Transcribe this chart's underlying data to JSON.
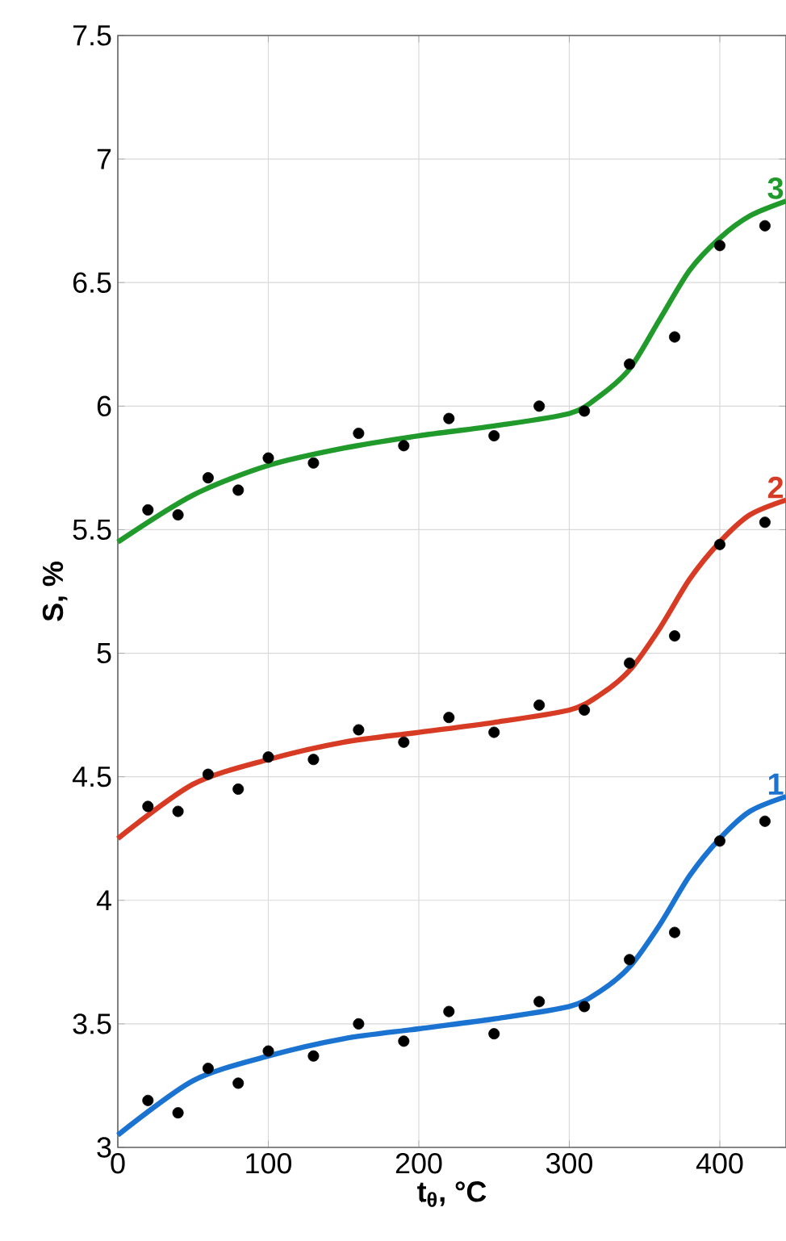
{
  "chart_data": {
    "type": "line",
    "xlabel": "t$_{θ}$, °C",
    "ylabel": "S, %",
    "xlim": [
      0,
      444
    ],
    "ylim": [
      3,
      7.5
    ],
    "xticks": [
      0,
      100,
      200,
      300,
      400
    ],
    "yticks": [
      3,
      3.5,
      4,
      4.5,
      5,
      5.5,
      6,
      6.5,
      7,
      7.5
    ],
    "grid": true,
    "series": [
      {
        "name": "1",
        "marker": "none",
        "color": "#1a73d0",
        "x": [
          0,
          50,
          100,
          150,
          200,
          250,
          300,
          320,
          340,
          360,
          380,
          400,
          420,
          444
        ],
        "values": [
          3.05,
          3.27,
          3.37,
          3.44,
          3.48,
          3.52,
          3.57,
          3.63,
          3.73,
          3.9,
          4.1,
          4.25,
          4.36,
          4.42
        ]
      },
      {
        "name": "2",
        "marker": "none",
        "color": "#d83b24",
        "x": [
          0,
          50,
          100,
          150,
          200,
          250,
          300,
          320,
          340,
          360,
          380,
          400,
          420,
          444
        ],
        "values": [
          4.25,
          4.47,
          4.57,
          4.64,
          4.68,
          4.72,
          4.77,
          4.83,
          4.93,
          5.1,
          5.3,
          5.45,
          5.56,
          5.62
        ]
      },
      {
        "name": "3",
        "marker": "none",
        "color": "#1f9a2b",
        "x": [
          0,
          50,
          100,
          150,
          200,
          250,
          300,
          320,
          340,
          360,
          380,
          400,
          420,
          444
        ],
        "values": [
          5.45,
          5.64,
          5.76,
          5.83,
          5.88,
          5.92,
          5.97,
          6.04,
          6.15,
          6.35,
          6.55,
          6.68,
          6.77,
          6.83
        ]
      },
      {
        "type": "scatter",
        "marker": "circle",
        "color": "#000000",
        "x": [
          20,
          40,
          60,
          80,
          100,
          130,
          160,
          190,
          220,
          250,
          280,
          310,
          340,
          370,
          400,
          430
        ],
        "values": [
          3.19,
          3.14,
          3.32,
          3.26,
          3.39,
          3.37,
          3.5,
          3.43,
          3.55,
          3.46,
          3.59,
          3.57,
          3.76,
          3.87,
          4.24,
          4.32
        ]
      },
      {
        "type": "scatter",
        "marker": "circle",
        "color": "#000000",
        "x": [
          20,
          40,
          60,
          80,
          100,
          130,
          160,
          190,
          220,
          250,
          280,
          310,
          340,
          370,
          400,
          430
        ],
        "values": [
          4.38,
          4.36,
          4.51,
          4.45,
          4.58,
          4.57,
          4.69,
          4.64,
          4.74,
          4.68,
          4.79,
          4.77,
          4.96,
          5.07,
          5.44,
          5.53
        ]
      },
      {
        "type": "scatter",
        "marker": "circle",
        "color": "#000000",
        "x": [
          20,
          40,
          60,
          80,
          100,
          130,
          160,
          190,
          220,
          250,
          280,
          310,
          340,
          370,
          400,
          430
        ],
        "values": [
          5.58,
          5.56,
          5.71,
          5.66,
          5.79,
          5.77,
          5.89,
          5.84,
          5.95,
          5.88,
          6.0,
          5.98,
          6.17,
          6.28,
          6.65,
          6.73
        ]
      }
    ]
  }
}
